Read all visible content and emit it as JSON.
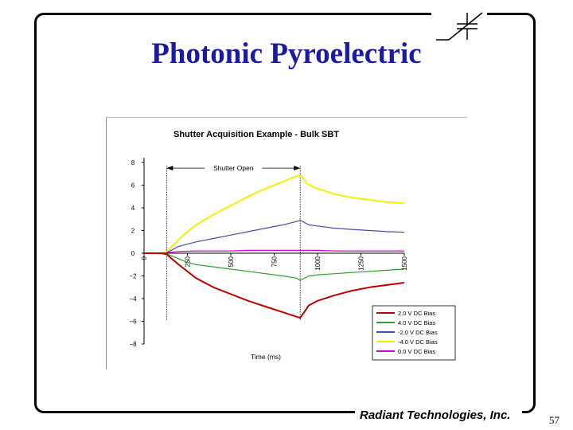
{
  "slide": {
    "title": "Photonic Pyroelectric",
    "company": "Radiant Technologies, Inc.",
    "page_number": "57"
  },
  "colors": {
    "title": "#1a1aa6",
    "frame": "#000000"
  },
  "chart_data": {
    "type": "line",
    "title": "Shutter Acquisition Example - Bulk SBT",
    "xlabel": "Time (ms)",
    "ylabel": "",
    "xlim": [
      0,
      1500
    ],
    "ylim": [
      -8,
      8
    ],
    "x_ticks": [
      0,
      250,
      500,
      750,
      1000,
      1250,
      1500
    ],
    "y_ticks": [
      8,
      6,
      4,
      2,
      0,
      -2,
      -4,
      -6,
      -8
    ],
    "grid": false,
    "legend_position": "bottom-right",
    "annotation": {
      "text": "Shutter Open",
      "x_start": 130,
      "x_end": 900
    },
    "shutter_markers_x": [
      130,
      900
    ],
    "series": [
      {
        "name": "2.0 V DC Bias",
        "color": "#c00000",
        "x": [
          0,
          100,
          130,
          200,
          250,
          300,
          400,
          500,
          600,
          700,
          800,
          880,
          900,
          950,
          1000,
          1100,
          1200,
          1300,
          1400,
          1500
        ],
        "values": [
          0,
          0,
          -0.1,
          -1.0,
          -1.6,
          -2.2,
          -3.0,
          -3.6,
          -4.2,
          -4.7,
          -5.2,
          -5.6,
          -5.7,
          -4.6,
          -4.2,
          -3.7,
          -3.3,
          -3.0,
          -2.8,
          -2.6
        ]
      },
      {
        "name": "4.0 V DC Bias",
        "color": "#2e9e2e",
        "x": [
          0,
          100,
          130,
          200,
          250,
          300,
          400,
          500,
          600,
          700,
          800,
          880,
          900,
          950,
          1000,
          1100,
          1200,
          1300,
          1400,
          1500
        ],
        "values": [
          0,
          0,
          -0.05,
          -0.5,
          -0.8,
          -1.0,
          -1.2,
          -1.4,
          -1.6,
          -1.8,
          -2.0,
          -2.2,
          -2.4,
          -2.0,
          -1.9,
          -1.8,
          -1.7,
          -1.6,
          -1.5,
          -1.4
        ]
      },
      {
        "name": "-2.0 V DC Bias",
        "color": "#4a4aa8",
        "x": [
          0,
          100,
          130,
          200,
          250,
          300,
          400,
          500,
          600,
          700,
          800,
          880,
          900,
          950,
          1000,
          1100,
          1200,
          1300,
          1400,
          1500
        ],
        "values": [
          0,
          0,
          0.05,
          0.6,
          0.8,
          1.0,
          1.3,
          1.6,
          1.9,
          2.2,
          2.5,
          2.8,
          2.9,
          2.5,
          2.4,
          2.2,
          2.1,
          2.0,
          1.9,
          1.85
        ]
      },
      {
        "name": "-4.0 V DC Bias",
        "color": "#f2f200",
        "x": [
          0,
          100,
          130,
          200,
          250,
          300,
          400,
          500,
          600,
          700,
          800,
          880,
          900,
          950,
          1000,
          1100,
          1200,
          1300,
          1400,
          1500
        ],
        "values": [
          0,
          0,
          0.1,
          1.2,
          1.9,
          2.5,
          3.4,
          4.2,
          5.0,
          5.7,
          6.3,
          6.8,
          6.9,
          6.0,
          5.7,
          5.2,
          4.9,
          4.7,
          4.5,
          4.4
        ]
      },
      {
        "name": "0.0 V DC Bias",
        "color": "#d000d0",
        "x": [
          0,
          100,
          130,
          200,
          300,
          400,
          500,
          600,
          700,
          800,
          900,
          1000,
          1100,
          1200,
          1300,
          1400,
          1500
        ],
        "values": [
          0,
          0,
          0.05,
          0.15,
          0.2,
          0.2,
          0.2,
          0.25,
          0.25,
          0.25,
          0.25,
          0.25,
          0.2,
          0.2,
          0.2,
          0.2,
          0.2
        ]
      }
    ]
  }
}
